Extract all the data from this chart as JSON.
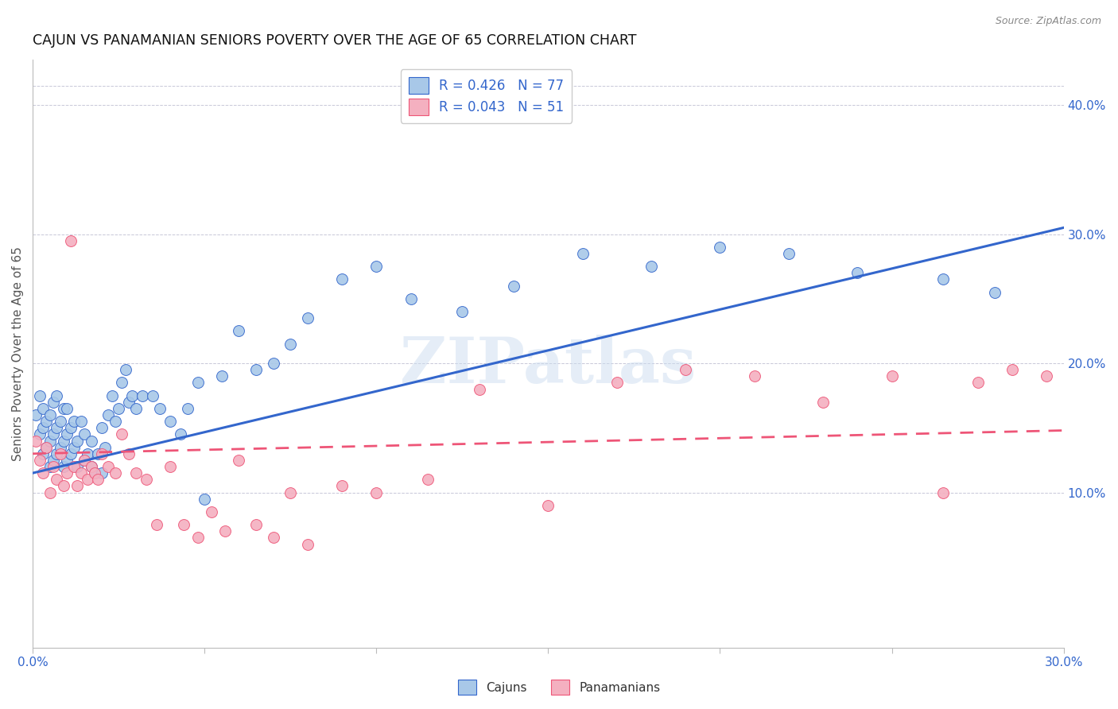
{
  "title": "CAJUN VS PANAMANIAN SENIORS POVERTY OVER THE AGE OF 65 CORRELATION CHART",
  "source": "Source: ZipAtlas.com",
  "ylabel": "Seniors Poverty Over the Age of 65",
  "xlim": [
    0.0,
    0.3
  ],
  "ylim": [
    -0.02,
    0.435
  ],
  "yticks_right": [
    0.1,
    0.2,
    0.3,
    0.4
  ],
  "legend_cajun": "R = 0.426   N = 77",
  "legend_pana": "R = 0.043   N = 51",
  "cajun_color": "#a8c8e8",
  "pana_color": "#f4b0c0",
  "cajun_line_color": "#3366cc",
  "pana_line_color": "#ee5577",
  "background_color": "#ffffff",
  "watermark": "ZIPatlas",
  "cajun_trend_x0": 0.0,
  "cajun_trend_y0": 0.115,
  "cajun_trend_x1": 0.3,
  "cajun_trend_y1": 0.305,
  "pana_trend_x0": 0.0,
  "pana_trend_y0": 0.13,
  "pana_trend_x1": 0.3,
  "pana_trend_y1": 0.148,
  "cajun_x": [
    0.001,
    0.002,
    0.002,
    0.003,
    0.003,
    0.003,
    0.004,
    0.004,
    0.005,
    0.005,
    0.005,
    0.006,
    0.006,
    0.006,
    0.007,
    0.007,
    0.007,
    0.008,
    0.008,
    0.009,
    0.009,
    0.009,
    0.01,
    0.01,
    0.01,
    0.011,
    0.011,
    0.012,
    0.012,
    0.013,
    0.013,
    0.014,
    0.015,
    0.015,
    0.016,
    0.017,
    0.017,
    0.018,
    0.019,
    0.02,
    0.02,
    0.021,
    0.022,
    0.023,
    0.024,
    0.025,
    0.026,
    0.027,
    0.028,
    0.029,
    0.03,
    0.032,
    0.035,
    0.037,
    0.04,
    0.043,
    0.045,
    0.048,
    0.05,
    0.055,
    0.06,
    0.065,
    0.07,
    0.075,
    0.08,
    0.09,
    0.1,
    0.11,
    0.125,
    0.14,
    0.16,
    0.18,
    0.2,
    0.22,
    0.24,
    0.265,
    0.28
  ],
  "cajun_y": [
    0.16,
    0.175,
    0.145,
    0.13,
    0.15,
    0.165,
    0.135,
    0.155,
    0.12,
    0.14,
    0.16,
    0.125,
    0.145,
    0.17,
    0.13,
    0.15,
    0.175,
    0.135,
    0.155,
    0.12,
    0.14,
    0.165,
    0.125,
    0.145,
    0.165,
    0.13,
    0.15,
    0.135,
    0.155,
    0.12,
    0.14,
    0.155,
    0.125,
    0.145,
    0.13,
    0.12,
    0.14,
    0.115,
    0.13,
    0.115,
    0.15,
    0.135,
    0.16,
    0.175,
    0.155,
    0.165,
    0.185,
    0.195,
    0.17,
    0.175,
    0.165,
    0.175,
    0.175,
    0.165,
    0.155,
    0.145,
    0.165,
    0.185,
    0.095,
    0.19,
    0.225,
    0.195,
    0.2,
    0.215,
    0.235,
    0.265,
    0.275,
    0.25,
    0.24,
    0.26,
    0.285,
    0.275,
    0.29,
    0.285,
    0.27,
    0.265,
    0.255
  ],
  "pana_x": [
    0.001,
    0.002,
    0.003,
    0.004,
    0.005,
    0.006,
    0.007,
    0.008,
    0.009,
    0.01,
    0.011,
    0.012,
    0.013,
    0.014,
    0.015,
    0.016,
    0.017,
    0.018,
    0.019,
    0.02,
    0.022,
    0.024,
    0.026,
    0.028,
    0.03,
    0.033,
    0.036,
    0.04,
    0.044,
    0.048,
    0.052,
    0.056,
    0.06,
    0.065,
    0.07,
    0.075,
    0.08,
    0.09,
    0.1,
    0.115,
    0.13,
    0.15,
    0.17,
    0.19,
    0.21,
    0.23,
    0.25,
    0.265,
    0.275,
    0.285,
    0.295
  ],
  "pana_y": [
    0.14,
    0.125,
    0.115,
    0.135,
    0.1,
    0.12,
    0.11,
    0.13,
    0.105,
    0.115,
    0.295,
    0.12,
    0.105,
    0.115,
    0.125,
    0.11,
    0.12,
    0.115,
    0.11,
    0.13,
    0.12,
    0.115,
    0.145,
    0.13,
    0.115,
    0.11,
    0.075,
    0.12,
    0.075,
    0.065,
    0.085,
    0.07,
    0.125,
    0.075,
    0.065,
    0.1,
    0.06,
    0.105,
    0.1,
    0.11,
    0.18,
    0.09,
    0.185,
    0.195,
    0.19,
    0.17,
    0.19,
    0.1,
    0.185,
    0.195,
    0.19
  ]
}
